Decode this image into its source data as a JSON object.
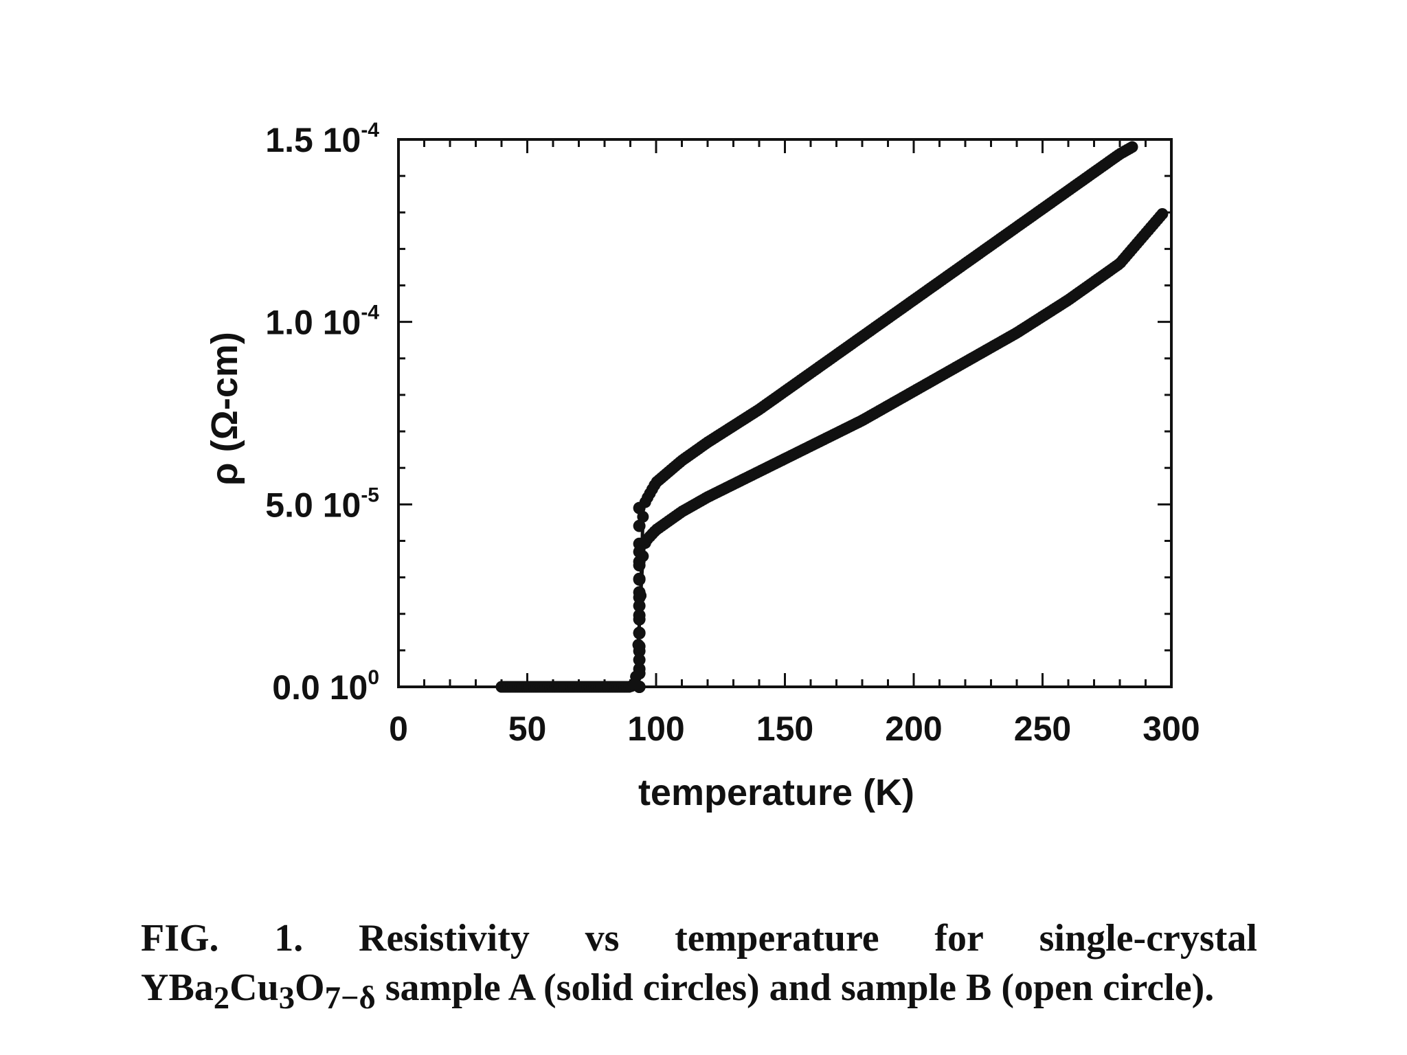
{
  "chart_data": {
    "type": "scatter",
    "title": "",
    "xlabel": "temperature (K)",
    "ylabel": "ρ (Ω-cm)",
    "xlim": [
      0,
      300
    ],
    "ylim": [
      0,
      0.00015
    ],
    "x_ticks": [
      0,
      50,
      100,
      150,
      200,
      250,
      300
    ],
    "x_tick_labels": [
      "0",
      "50",
      "100",
      "150",
      "200",
      "250",
      "300"
    ],
    "y_ticks": [
      0,
      5e-05,
      0.0001,
      0.00015
    ],
    "y_tick_labels": [
      {
        "mantissa": "0.0 10",
        "exponent": "0"
      },
      {
        "mantissa": "5.0 10",
        "exponent": "-5"
      },
      {
        "mantissa": "1.0 10",
        "exponent": "-4"
      },
      {
        "mantissa": "1.5 10",
        "exponent": "-4"
      }
    ],
    "series": [
      {
        "name": "sample A (solid circles)",
        "x": [
          40,
          50,
          60,
          70,
          80,
          90,
          92,
          93,
          94,
          95,
          96,
          100,
          110,
          120,
          140,
          160,
          180,
          200,
          220,
          240,
          260,
          280,
          285
        ],
        "y": [
          0.0,
          0.0,
          0.0,
          0.0,
          0.0,
          0.0,
          1e-06,
          1e-05,
          2.5e-05,
          4.9e-05,
          5.1e-05,
          5.6e-05,
          6.2e-05,
          6.7e-05,
          7.6e-05,
          8.6e-05,
          9.6e-05,
          0.000106,
          0.000116,
          0.000126,
          0.000136,
          0.000146,
          0.000148
        ]
      },
      {
        "name": "sample B (open circle)",
        "x": [
          40,
          50,
          60,
          70,
          80,
          90,
          92,
          93,
          94,
          95,
          96,
          100,
          110,
          120,
          140,
          160,
          180,
          200,
          220,
          240,
          260,
          280,
          297
        ],
        "y": [
          0.0,
          0.0,
          0.0,
          0.0,
          0.0,
          0.0,
          1e-06,
          1e-05,
          2.5e-05,
          3.7e-05,
          4e-05,
          4.3e-05,
          4.8e-05,
          5.2e-05,
          5.9e-05,
          6.6e-05,
          7.3e-05,
          8.1e-05,
          8.9e-05,
          9.7e-05,
          0.000106,
          0.000116,
          0.00013
        ]
      }
    ]
  },
  "caption": {
    "line1_words": [
      "FIG.",
      "1.",
      "Resistivity",
      "vs",
      "temperature",
      "for",
      "single-crystal"
    ],
    "formula": {
      "y": "YBa",
      "s1": "2",
      "cu": "Cu",
      "s2": "3",
      "o": "O",
      "s3": "7−δ"
    },
    "line2_rest": " sample A (solid circles) and sample B (open circle)."
  }
}
